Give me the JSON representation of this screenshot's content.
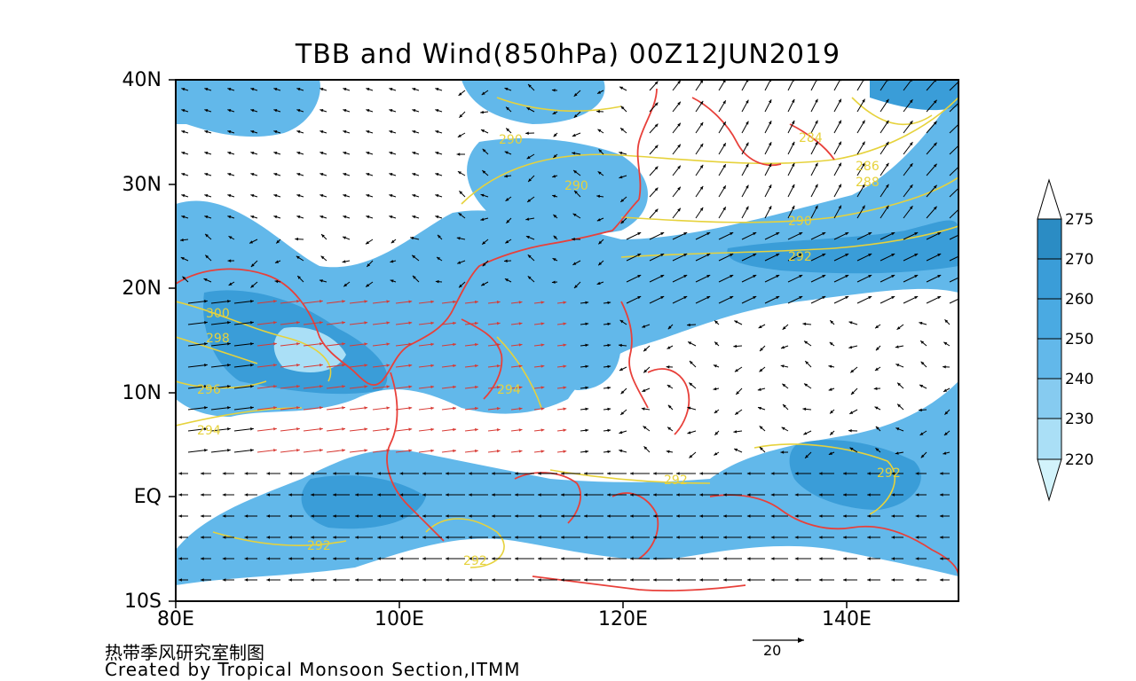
{
  "title": "TBB and Wind(850hPa) 00Z12JUN2019",
  "axes": {
    "lat_ticks": [
      "40N",
      "30N",
      "20N",
      "10N",
      "EQ",
      "10S"
    ],
    "lon_ticks": [
      "80E",
      "100E",
      "120E",
      "140E"
    ]
  },
  "map_extent": {
    "lon_min": 80,
    "lon_max": 150,
    "lat_min": -10,
    "lat_max": 40
  },
  "colorbar": {
    "levels": [
      "275",
      "270",
      "260",
      "250",
      "240",
      "230",
      "220"
    ],
    "colors": [
      "#2b8cc4",
      "#3a9dd8",
      "#4aaae2",
      "#62b8ea",
      "#86cbf0",
      "#aadff6",
      "#d2f3fb"
    ]
  },
  "contour_labels": [
    "290",
    "290",
    "284",
    "286",
    "288",
    "290",
    "292",
    "300",
    "298",
    "296",
    "294",
    "294",
    "292",
    "292",
    "292",
    "292"
  ],
  "wind_reference": {
    "label": "20"
  },
  "credit": {
    "chinese": "热带季风研究室制图",
    "english": "Created by Tropical Monsoon Section,ITMM"
  },
  "colors": {
    "coast": "#e8403a",
    "contour": "#e6d23c",
    "wind_black": "#000000",
    "wind_red": "#d83a34"
  }
}
